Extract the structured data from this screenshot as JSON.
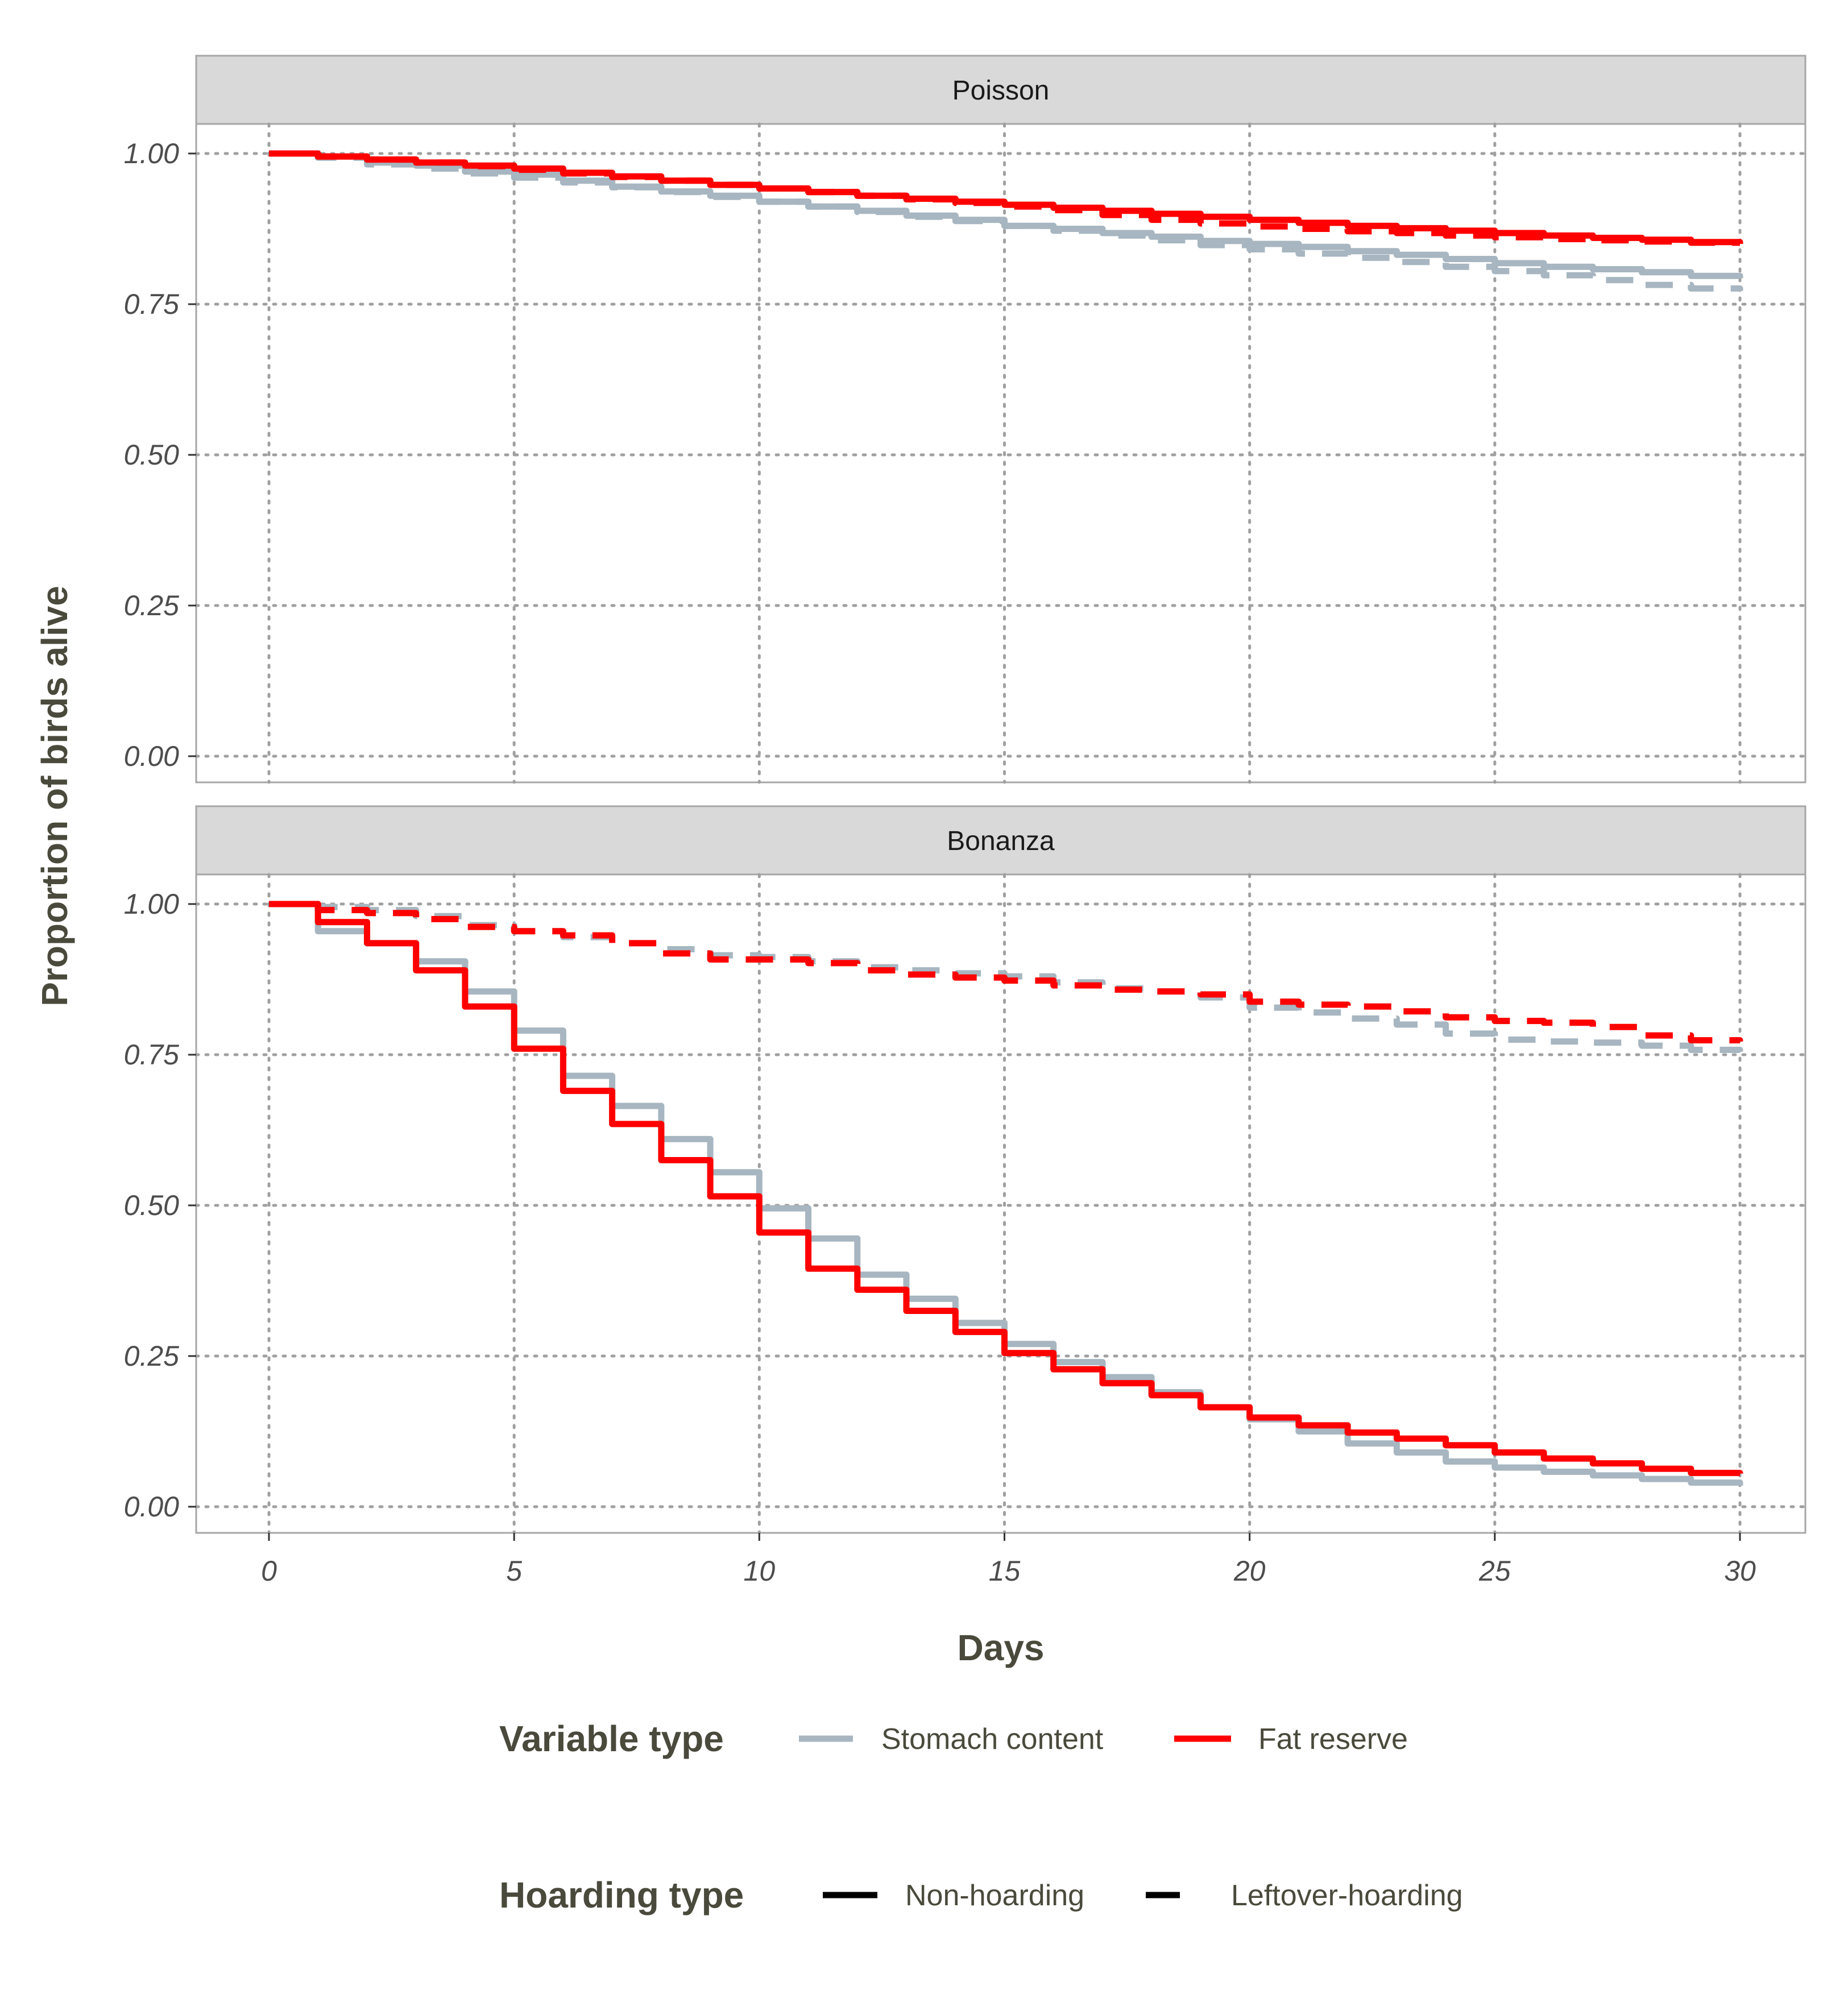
{
  "chart_data": {
    "type": "line",
    "xlabel": "Days",
    "ylabel": "Proportion of birds alive",
    "xlim": [
      0,
      30
    ],
    "ylim": [
      0,
      1.05
    ],
    "x_ticks": [
      "0",
      "5",
      "10",
      "15",
      "20",
      "25",
      "30"
    ],
    "y_ticks": [
      "0.00",
      "0.25",
      "0.50",
      "0.75",
      "1.00"
    ],
    "grid": "dotted",
    "legend_position": "bottom",
    "legends": {
      "variable": {
        "title": "Variable type",
        "entries": [
          {
            "label": "Stomach content",
            "color": "#A7B6C0"
          },
          {
            "label": "Fat reserve",
            "color": "#FF0000"
          }
        ]
      },
      "hoarding": {
        "title": "Hoarding type",
        "entries": [
          {
            "label": "Non-hoarding",
            "style": "solid"
          },
          {
            "label": "Leftover-hoarding",
            "style": "dashed"
          }
        ]
      }
    },
    "x": [
      0,
      1,
      2,
      3,
      4,
      5,
      6,
      7,
      8,
      9,
      10,
      11,
      12,
      13,
      14,
      15,
      16,
      17,
      18,
      19,
      20,
      21,
      22,
      23,
      24,
      25,
      26,
      27,
      28,
      29,
      30
    ],
    "panels": [
      {
        "title": "Poisson",
        "series": [
          {
            "variable": "Stomach content",
            "hoarding": "Non-hoarding",
            "color": "#A7B6C0",
            "dash": "solid",
            "values": [
              1.0,
              0.995,
              0.985,
              0.98,
              0.97,
              0.965,
              0.955,
              0.945,
              0.937,
              0.93,
              0.92,
              0.912,
              0.905,
              0.897,
              0.89,
              0.88,
              0.875,
              0.868,
              0.862,
              0.855,
              0.85,
              0.845,
              0.838,
              0.832,
              0.825,
              0.818,
              0.812,
              0.808,
              0.803,
              0.797,
              0.793
            ]
          },
          {
            "variable": "Stomach content",
            "hoarding": "Leftover-hoarding",
            "color": "#A7B6C0",
            "dash": "dashed",
            "values": [
              1.0,
              0.993,
              0.982,
              0.975,
              0.967,
              0.96,
              0.952,
              0.944,
              0.936,
              0.928,
              0.92,
              0.912,
              0.903,
              0.895,
              0.888,
              0.88,
              0.872,
              0.864,
              0.856,
              0.848,
              0.841,
              0.834,
              0.827,
              0.82,
              0.812,
              0.805,
              0.798,
              0.79,
              0.782,
              0.776,
              0.772
            ]
          },
          {
            "variable": "Fat reserve",
            "hoarding": "Non-hoarding",
            "color": "#FF0000",
            "dash": "solid",
            "values": [
              1.0,
              0.995,
              0.99,
              0.985,
              0.98,
              0.975,
              0.968,
              0.962,
              0.955,
              0.948,
              0.942,
              0.936,
              0.93,
              0.925,
              0.92,
              0.915,
              0.91,
              0.905,
              0.9,
              0.895,
              0.89,
              0.885,
              0.88,
              0.876,
              0.872,
              0.868,
              0.864,
              0.86,
              0.857,
              0.853,
              0.85
            ]
          },
          {
            "variable": "Fat reserve",
            "hoarding": "Leftover-hoarding",
            "color": "#FF0000",
            "dash": "dashed",
            "values": [
              1.0,
              0.995,
              0.99,
              0.985,
              0.979,
              0.973,
              0.967,
              0.961,
              0.955,
              0.948,
              0.942,
              0.936,
              0.93,
              0.924,
              0.918,
              0.912,
              0.906,
              0.898,
              0.89,
              0.884,
              0.879,
              0.875,
              0.871,
              0.868,
              0.864,
              0.861,
              0.858,
              0.856,
              0.854,
              0.852,
              0.85
            ]
          }
        ]
      },
      {
        "title": "Bonanza",
        "series": [
          {
            "variable": "Stomach content",
            "hoarding": "Non-hoarding",
            "color": "#A7B6C0",
            "dash": "solid",
            "values": [
              1.0,
              0.955,
              0.935,
              0.905,
              0.855,
              0.79,
              0.715,
              0.665,
              0.61,
              0.555,
              0.495,
              0.445,
              0.385,
              0.345,
              0.305,
              0.27,
              0.24,
              0.215,
              0.19,
              0.165,
              0.145,
              0.125,
              0.105,
              0.09,
              0.075,
              0.065,
              0.058,
              0.052,
              0.046,
              0.04,
              0.035
            ]
          },
          {
            "variable": "Stomach content",
            "hoarding": "Leftover-hoarding",
            "color": "#A7B6C0",
            "dash": "dashed",
            "values": [
              1.0,
              0.995,
              0.99,
              0.98,
              0.965,
              0.955,
              0.945,
              0.935,
              0.925,
              0.915,
              0.912,
              0.905,
              0.895,
              0.89,
              0.885,
              0.88,
              0.87,
              0.86,
              0.855,
              0.845,
              0.828,
              0.82,
              0.81,
              0.8,
              0.785,
              0.775,
              0.772,
              0.77,
              0.765,
              0.758,
              0.755
            ]
          },
          {
            "variable": "Fat reserve",
            "hoarding": "Non-hoarding",
            "color": "#FF0000",
            "dash": "solid",
            "values": [
              1.0,
              0.97,
              0.935,
              0.89,
              0.83,
              0.76,
              0.69,
              0.635,
              0.575,
              0.515,
              0.455,
              0.395,
              0.36,
              0.325,
              0.29,
              0.255,
              0.228,
              0.205,
              0.185,
              0.165,
              0.148,
              0.135,
              0.123,
              0.113,
              0.102,
              0.09,
              0.08,
              0.072,
              0.063,
              0.056,
              0.055
            ]
          },
          {
            "variable": "Fat reserve",
            "hoarding": "Leftover-hoarding",
            "color": "#FF0000",
            "dash": "dashed",
            "values": [
              1.0,
              0.99,
              0.985,
              0.975,
              0.962,
              0.955,
              0.948,
              0.935,
              0.918,
              0.908,
              0.908,
              0.902,
              0.89,
              0.883,
              0.878,
              0.873,
              0.865,
              0.858,
              0.855,
              0.85,
              0.838,
              0.833,
              0.83,
              0.822,
              0.812,
              0.806,
              0.803,
              0.796,
              0.782,
              0.774,
              0.772
            ]
          }
        ]
      }
    ]
  }
}
